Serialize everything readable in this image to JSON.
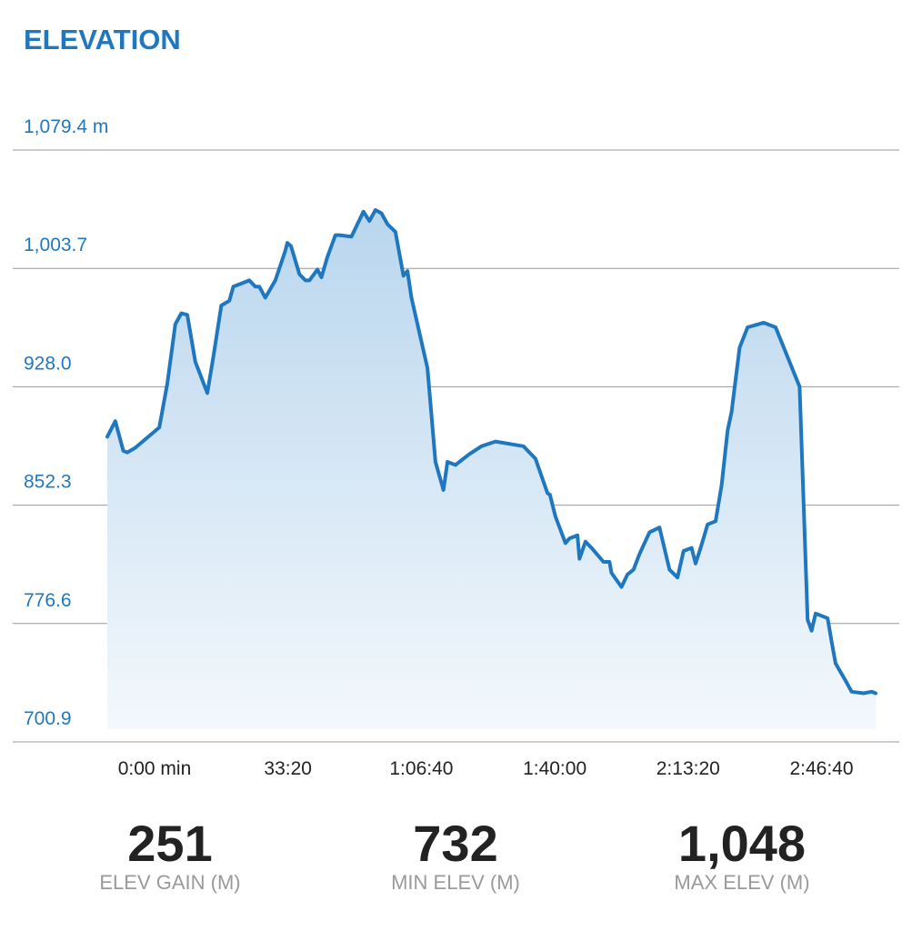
{
  "header": {
    "title": "ELEVATION"
  },
  "colors": {
    "accent": "#1f78bf",
    "fill_top": "#b9d6ee",
    "fill_bottom": "#f3f8fc",
    "grid": "#999999"
  },
  "chart_data": {
    "type": "area",
    "title": "ELEVATION",
    "xlabel": "",
    "ylabel": "",
    "y_tick_labels": [
      "1,079.4 m",
      "1,003.7",
      "928.0",
      "852.3",
      "776.6",
      "700.9"
    ],
    "y_ticks": [
      1079.4,
      1003.7,
      928.0,
      852.3,
      776.6,
      700.9
    ],
    "ylim": [
      700.9,
      1079.4
    ],
    "x_tick_labels": [
      "0:00 min",
      "33:20",
      "1:06:40",
      "1:40:00",
      "2:13:20",
      "2:46:40"
    ],
    "x_ticks_min": [
      0,
      33.33,
      66.67,
      100,
      133.33,
      166.67
    ],
    "xlim": [
      0,
      192
    ],
    "grid": true,
    "series": [
      {
        "x": [
          0,
          2.0,
          4.0,
          5.0,
          7.0,
          13.0,
          15.0,
          17.0,
          18.5,
          20.0,
          22.0,
          25.0,
          26.5,
          28.5,
          30.5,
          31.5,
          33.5,
          35.5,
          37.0,
          38.0,
          39.5,
          42.0,
          44.5,
          45.0,
          45.9,
          48.0,
          49.5,
          50.5,
          52.5,
          53.5,
          55.0,
          57.0,
          58.0,
          61.0,
          64.0,
          65.5,
          67.0,
          68.5,
          70.0,
          72.0,
          74.0,
          75.0,
          76.0,
          80.0,
          82.0,
          84.0,
          85.0,
          87.0,
          89.0,
          90.5,
          93.5,
          97.0,
          104.0,
          107.0,
          110.0,
          110.6,
          112.0,
          114.5,
          115.5,
          117.5,
          118.0,
          119.5,
          121.0,
          122.0,
          124.0,
          125.5,
          126.0,
          128.5,
          130.0,
          131.5,
          133.0,
          135.5,
          138.0,
          140.5,
          142.5,
          144.0,
          146.0,
          147.0,
          148.5,
          150.0,
          152.0,
          153.5,
          155.0,
          156.0,
          158.0,
          160.0,
          164.0,
          167.0,
          173.0,
          175.0,
          176.0,
          177.0,
          180.0,
          181.0,
          182.0,
          184.5,
          186.0,
          189.0,
          191.0,
          192.0
        ],
        "y": [
          896,
          906,
          887,
          886,
          889,
          902,
          930,
          968,
          975,
          974,
          944,
          924,
          947,
          980,
          983,
          992,
          994,
          996,
          992,
          992,
          985,
          996,
          1015,
          1020,
          1018,
          1000,
          996,
          996,
          1003,
          998,
          1011,
          1025,
          1025,
          1024,
          1040,
          1034,
          1041,
          1039,
          1032,
          1027,
          999,
          1002,
          985,
          940,
          880,
          862,
          880,
          878,
          882,
          885,
          890,
          893,
          890,
          882,
          860,
          859,
          845,
          828,
          831,
          833,
          818,
          829,
          825,
          822,
          816,
          816,
          809,
          800,
          808,
          811,
          821,
          835,
          838,
          811,
          806,
          823,
          825,
          815,
          827,
          840,
          842,
          865,
          900,
          912,
          953,
          966,
          969,
          966,
          928,
          779,
          772,
          783,
          780,
          765,
          751,
          740,
          733,
          732,
          733,
          732
        ]
      }
    ]
  },
  "stats": [
    {
      "value": "251",
      "label": "ELEV GAIN (M)"
    },
    {
      "value": "732",
      "label": "MIN ELEV (M)"
    },
    {
      "value": "1,048",
      "label": "MAX ELEV (M)"
    }
  ]
}
